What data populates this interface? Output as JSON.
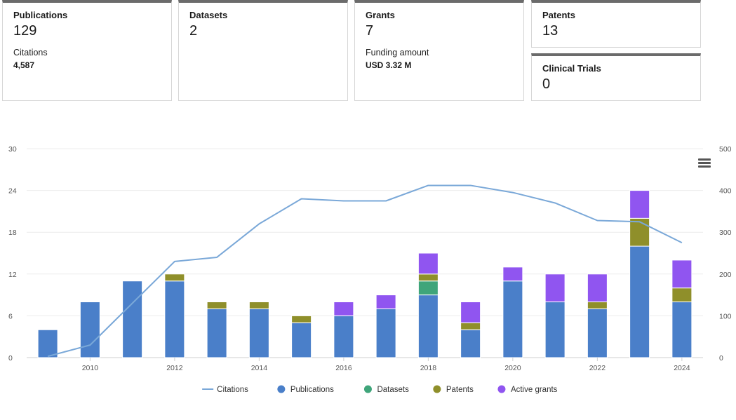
{
  "cards": {
    "publications": {
      "label": "Publications",
      "value": "129",
      "sub_label": "Citations",
      "sub_value": "4,587"
    },
    "datasets": {
      "label": "Datasets",
      "value": "2"
    },
    "grants": {
      "label": "Grants",
      "value": "7",
      "sub_label": "Funding amount",
      "sub_value": "USD 3.32 M"
    },
    "patents": {
      "label": "Patents",
      "value": "13"
    },
    "clinical_trials": {
      "label": "Clinical Trials",
      "value": "0"
    }
  },
  "chart_data": {
    "type": "bar",
    "stacked": true,
    "x": [
      2009,
      2010,
      2011,
      2012,
      2013,
      2014,
      2015,
      2016,
      2017,
      2018,
      2019,
      2020,
      2021,
      2022,
      2023,
      2024
    ],
    "x_tick_labels": [
      "2010",
      "2012",
      "2014",
      "2016",
      "2018",
      "2020",
      "2022",
      "2024"
    ],
    "y_left": {
      "min": 0,
      "max": 30,
      "ticks": [
        "0",
        "6",
        "12",
        "18",
        "24",
        "30"
      ]
    },
    "y_right": {
      "min": 0,
      "max": 500,
      "ticks": [
        "0",
        "100",
        "200",
        "300",
        "400",
        "500"
      ]
    },
    "series": [
      {
        "name": "Publications",
        "color": "#4a7fc9",
        "values": [
          4,
          8,
          11,
          11,
          7,
          7,
          5,
          6,
          7,
          9,
          4,
          11,
          8,
          7,
          16,
          8
        ]
      },
      {
        "name": "Datasets",
        "color": "#3fa57a",
        "values": [
          0,
          0,
          0,
          0,
          0,
          0,
          0,
          0,
          0,
          2,
          0,
          0,
          0,
          0,
          0,
          0
        ]
      },
      {
        "name": "Patents",
        "color": "#8f8f2a",
        "values": [
          0,
          0,
          0,
          1,
          1,
          1,
          1,
          0,
          0,
          1,
          1,
          0,
          0,
          1,
          4,
          2
        ]
      },
      {
        "name": "Active grants",
        "color": "#9055f0",
        "values": [
          0,
          0,
          0,
          0,
          0,
          0,
          0,
          2,
          2,
          3,
          3,
          2,
          4,
          4,
          4,
          4
        ]
      }
    ],
    "line_series": {
      "name": "Citations",
      "color": "#7aa8d8",
      "axis": "right",
      "values": [
        3,
        30,
        130,
        230,
        240,
        320,
        380,
        375,
        375,
        412,
        412,
        395,
        370,
        328,
        325,
        275
      ]
    },
    "legend": [
      "Citations",
      "Publications",
      "Datasets",
      "Patents",
      "Active grants"
    ],
    "legend_position": "bottom"
  },
  "icons": {
    "menu": "hamburger-menu-icon"
  }
}
